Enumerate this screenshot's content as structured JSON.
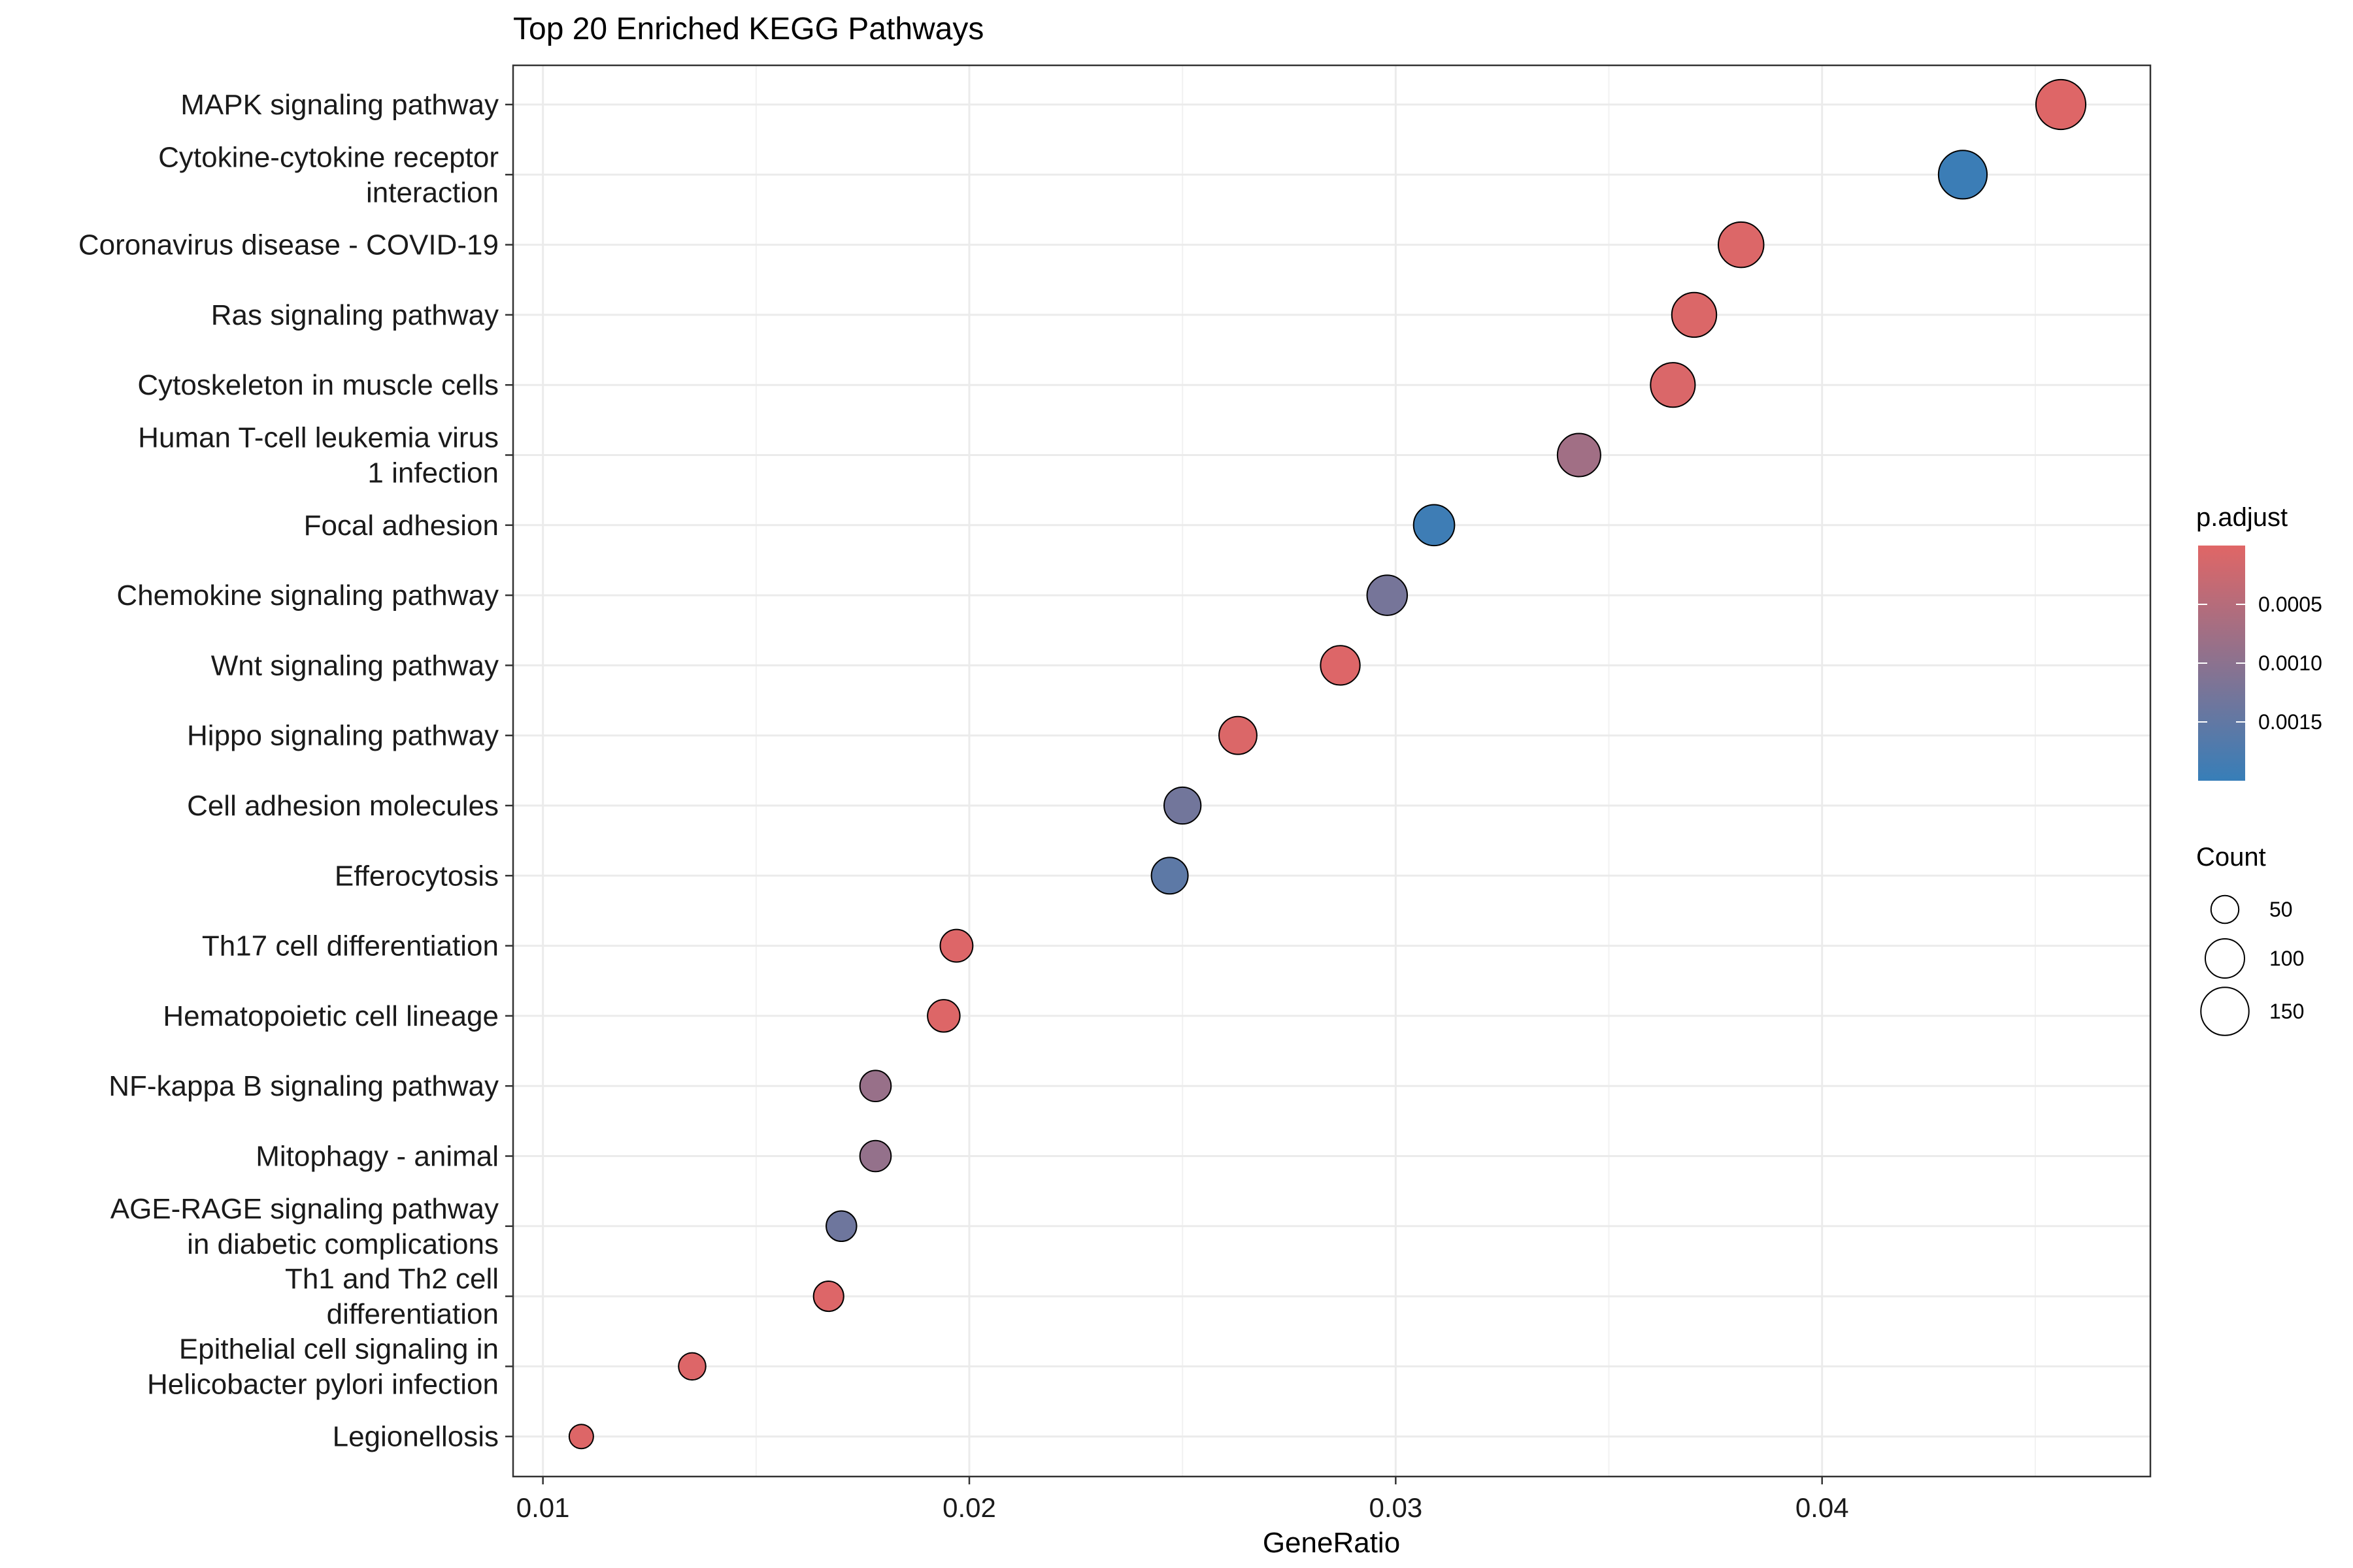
{
  "chart_data": {
    "type": "scatter",
    "title": "Top 20 Enriched KEGG Pathways",
    "xlabel": "GeneRatio",
    "ylabel": "",
    "xlim": [
      0.0093,
      0.0477
    ],
    "x_ticks": [
      {
        "value": 0.01,
        "label": "0.01"
      },
      {
        "value": 0.02,
        "label": "0.02"
      },
      {
        "value": 0.03,
        "label": "0.03"
      },
      {
        "value": 0.04,
        "label": "0.04"
      }
    ],
    "grid": true,
    "points": [
      {
        "pathway": "MAPK signaling pathway",
        "lines": [
          "MAPK signaling pathway"
        ],
        "gene_ratio": 0.0456,
        "count": 161,
        "p_adjust": 2e-05
      },
      {
        "pathway": "Cytokine-cytokine receptor interaction",
        "lines": [
          "Cytokine-cytokine receptor",
          "interaction"
        ],
        "gene_ratio": 0.0433,
        "count": 153,
        "p_adjust": 0.00195
      },
      {
        "pathway": "Coronavirus disease - COVID-19",
        "lines": [
          "Coronavirus disease - COVID-19"
        ],
        "gene_ratio": 0.0381,
        "count": 134,
        "p_adjust": 5e-05
      },
      {
        "pathway": "Ras signaling pathway",
        "lines": [
          "Ras signaling pathway"
        ],
        "gene_ratio": 0.037,
        "count": 130,
        "p_adjust": 6e-05
      },
      {
        "pathway": "Cytoskeleton in muscle cells",
        "lines": [
          "Cytoskeleton in muscle cells"
        ],
        "gene_ratio": 0.0365,
        "count": 129,
        "p_adjust": 7e-05
      },
      {
        "pathway": "Human T-cell leukemia virus 1 infection",
        "lines": [
          "Human T-cell leukemia virus",
          "1 infection"
        ],
        "gene_ratio": 0.0343,
        "count": 121,
        "p_adjust": 0.00075
      },
      {
        "pathway": "Focal adhesion",
        "lines": [
          "Focal adhesion"
        ],
        "gene_ratio": 0.0309,
        "count": 109,
        "p_adjust": 0.00192
      },
      {
        "pathway": "Chemokine signaling pathway",
        "lines": [
          "Chemokine signaling pathway"
        ],
        "gene_ratio": 0.0298,
        "count": 105,
        "p_adjust": 0.00125
      },
      {
        "pathway": "Wnt signaling pathway",
        "lines": [
          "Wnt signaling pathway"
        ],
        "gene_ratio": 0.0287,
        "count": 101,
        "p_adjust": 4e-05
      },
      {
        "pathway": "Hippo signaling pathway",
        "lines": [
          "Hippo signaling pathway"
        ],
        "gene_ratio": 0.0263,
        "count": 93,
        "p_adjust": 6e-05
      },
      {
        "pathway": "Cell adhesion molecules",
        "lines": [
          "Cell adhesion molecules"
        ],
        "gene_ratio": 0.025,
        "count": 88,
        "p_adjust": 0.0013
      },
      {
        "pathway": "Efferocytosis",
        "lines": [
          "Efferocytosis"
        ],
        "gene_ratio": 0.0247,
        "count": 87,
        "p_adjust": 0.00155
      },
      {
        "pathway": "Th17 cell differentiation",
        "lines": [
          "Th17 cell differentiation"
        ],
        "gene_ratio": 0.0197,
        "count": 69,
        "p_adjust": 4e-05
      },
      {
        "pathway": "Hematopoietic cell lineage",
        "lines": [
          "Hematopoietic cell lineage"
        ],
        "gene_ratio": 0.0194,
        "count": 68,
        "p_adjust": 3e-05
      },
      {
        "pathway": "NF-kappa B signaling pathway",
        "lines": [
          "NF-kappa B signaling pathway"
        ],
        "gene_ratio": 0.0178,
        "count": 63,
        "p_adjust": 0.00085
      },
      {
        "pathway": "Mitophagy - animal",
        "lines": [
          "Mitophagy - animal"
        ],
        "gene_ratio": 0.0178,
        "count": 63,
        "p_adjust": 0.0009
      },
      {
        "pathway": "AGE-RAGE signaling pathway in diabetic complications",
        "lines": [
          "AGE-RAGE signaling pathway",
          "in diabetic complications"
        ],
        "gene_ratio": 0.017,
        "count": 60,
        "p_adjust": 0.00135
      },
      {
        "pathway": "Th1 and Th2 cell differentiation",
        "lines": [
          "Th1 and Th2 cell",
          "differentiation"
        ],
        "gene_ratio": 0.0167,
        "count": 59,
        "p_adjust": 4e-05
      },
      {
        "pathway": "Epithelial cell signaling in Helicobacter pylori infection",
        "lines": [
          "Epithelial cell signaling in",
          "Helicobacter pylori infection"
        ],
        "gene_ratio": 0.0135,
        "count": 48,
        "p_adjust": 4e-05
      },
      {
        "pathway": "Legionellosis",
        "lines": [
          "Legionellosis"
        ],
        "gene_ratio": 0.0109,
        "count": 38,
        "p_adjust": 3e-05
      }
    ],
    "color_legend": {
      "title": "p.adjust",
      "low_color": "#e06666",
      "high_color": "#377eb8",
      "range": [
        0.0,
        0.002
      ],
      "ticks": [
        {
          "value": 0.0005,
          "label": "0.0005"
        },
        {
          "value": 0.001,
          "label": "0.0010"
        },
        {
          "value": 0.0015,
          "label": "0.0015"
        }
      ]
    },
    "size_legend": {
      "title": "Count",
      "items": [
        {
          "value": 50,
          "label": "50"
        },
        {
          "value": 100,
          "label": "100"
        },
        {
          "value": 150,
          "label": "150"
        }
      ]
    },
    "legend_position": "right"
  }
}
